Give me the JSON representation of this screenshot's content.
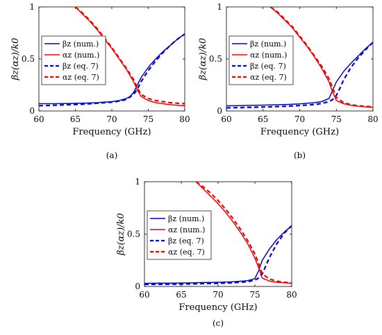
{
  "chart_data": [
    {
      "type": "line",
      "panel_label": "(a)",
      "xlabel": "Frequency (GHz)",
      "ylabel": "βz(αz)/k0",
      "xlim": [
        60,
        80
      ],
      "ylim": [
        0,
        1
      ],
      "x_ticks": [
        "60",
        "65",
        "70",
        "75",
        "80"
      ],
      "y_ticks": [
        "0",
        "0.5",
        "1"
      ],
      "grid": false,
      "legend_position": "top-left",
      "series": [
        {
          "name": "βz (num.)",
          "color": "#0000cc",
          "dash": "solid",
          "x": [
            60,
            62,
            64,
            66,
            68,
            70,
            71,
            72,
            72.5,
            73,
            73.5,
            74,
            75,
            76,
            77,
            78,
            79,
            80
          ],
          "y": [
            0.07,
            0.07,
            0.072,
            0.075,
            0.08,
            0.09,
            0.1,
            0.12,
            0.14,
            0.18,
            0.25,
            0.32,
            0.42,
            0.5,
            0.57,
            0.63,
            0.69,
            0.74
          ]
        },
        {
          "name": "αz (num.)",
          "color": "#ee0000",
          "dash": "solid",
          "x": [
            65,
            66,
            67,
            68,
            69,
            70,
            71,
            72,
            73,
            73.5,
            74,
            75,
            76,
            77,
            78,
            79,
            80
          ],
          "y": [
            1.0,
            0.93,
            0.86,
            0.78,
            0.69,
            0.6,
            0.5,
            0.4,
            0.28,
            0.2,
            0.14,
            0.1,
            0.08,
            0.07,
            0.06,
            0.055,
            0.05
          ]
        },
        {
          "name": "βz (eq. 7)",
          "color": "#0000cc",
          "dash": "dashed",
          "x": [
            60,
            62,
            64,
            66,
            68,
            70,
            71,
            72,
            73,
            73.5,
            74,
            75,
            76,
            77,
            78,
            79,
            80
          ],
          "y": [
            0.05,
            0.055,
            0.06,
            0.065,
            0.075,
            0.085,
            0.095,
            0.11,
            0.16,
            0.21,
            0.28,
            0.39,
            0.48,
            0.56,
            0.63,
            0.69,
            0.74
          ]
        },
        {
          "name": "αz (eq. 7)",
          "color": "#ee0000",
          "dash": "dashed",
          "x": [
            65,
            66,
            67,
            68,
            69,
            70,
            71,
            72,
            73,
            73.5,
            74,
            75,
            76,
            77,
            78,
            79,
            80
          ],
          "y": [
            1.0,
            0.94,
            0.87,
            0.79,
            0.7,
            0.61,
            0.51,
            0.41,
            0.3,
            0.22,
            0.16,
            0.12,
            0.1,
            0.09,
            0.08,
            0.075,
            0.07
          ]
        }
      ]
    },
    {
      "type": "line",
      "panel_label": "(b)",
      "xlabel": "Frequency (GHz)",
      "ylabel": "βz(αz)/k0",
      "xlim": [
        60,
        80
      ],
      "ylim": [
        0,
        1
      ],
      "x_ticks": [
        "60",
        "65",
        "70",
        "75",
        "80"
      ],
      "y_ticks": [
        "0",
        "0.5",
        "1"
      ],
      "grid": false,
      "legend_position": "top-left",
      "series": [
        {
          "name": "βz (num.)",
          "color": "#0000cc",
          "dash": "solid",
          "x": [
            60,
            62,
            64,
            66,
            68,
            70,
            72,
            73,
            74,
            74.5,
            75,
            76,
            77,
            78,
            79,
            80
          ],
          "y": [
            0.05,
            0.052,
            0.055,
            0.058,
            0.062,
            0.068,
            0.08,
            0.09,
            0.12,
            0.2,
            0.28,
            0.38,
            0.46,
            0.53,
            0.6,
            0.66
          ]
        },
        {
          "name": "αz (num.)",
          "color": "#ee0000",
          "dash": "solid",
          "x": [
            66,
            67,
            68,
            69,
            70,
            71,
            72,
            73,
            74,
            74.5,
            75,
            76,
            77,
            78,
            79,
            80
          ],
          "y": [
            1.0,
            0.94,
            0.87,
            0.8,
            0.71,
            0.62,
            0.52,
            0.41,
            0.28,
            0.18,
            0.1,
            0.07,
            0.055,
            0.045,
            0.04,
            0.035
          ]
        },
        {
          "name": "βz (eq. 7)",
          "color": "#0000cc",
          "dash": "dashed",
          "x": [
            60,
            62,
            64,
            66,
            68,
            70,
            72,
            73,
            74,
            74.5,
            75,
            75.5,
            76,
            77,
            78,
            79,
            80
          ],
          "y": [
            0.03,
            0.033,
            0.036,
            0.04,
            0.045,
            0.052,
            0.062,
            0.072,
            0.09,
            0.11,
            0.15,
            0.22,
            0.3,
            0.42,
            0.51,
            0.59,
            0.66
          ]
        },
        {
          "name": "αz (eq. 7)",
          "color": "#ee0000",
          "dash": "dashed",
          "x": [
            66,
            67,
            68,
            69,
            70,
            71,
            72,
            73,
            74,
            74.5,
            75,
            76,
            77,
            78,
            79,
            80
          ],
          "y": [
            1.0,
            0.95,
            0.88,
            0.81,
            0.72,
            0.63,
            0.53,
            0.43,
            0.31,
            0.22,
            0.13,
            0.08,
            0.06,
            0.05,
            0.045,
            0.04
          ]
        }
      ]
    },
    {
      "type": "line",
      "panel_label": "(c)",
      "xlabel": "Frequency (GHz)",
      "ylabel": "βz(αz)/k0",
      "xlim": [
        60,
        80
      ],
      "ylim": [
        0,
        1
      ],
      "x_ticks": [
        "60",
        "65",
        "70",
        "75",
        "80"
      ],
      "y_ticks": [
        "0",
        "0.5",
        "1"
      ],
      "grid": false,
      "legend_position": "top-left",
      "series": [
        {
          "name": "βz (num.)",
          "color": "#0000cc",
          "dash": "solid",
          "x": [
            60,
            62,
            64,
            66,
            68,
            70,
            72,
            74,
            75,
            75.5,
            76,
            77,
            78,
            79,
            80
          ],
          "y": [
            0.03,
            0.031,
            0.032,
            0.034,
            0.037,
            0.04,
            0.045,
            0.055,
            0.075,
            0.15,
            0.25,
            0.36,
            0.45,
            0.52,
            0.58
          ]
        },
        {
          "name": "αz (num.)",
          "color": "#ee0000",
          "dash": "solid",
          "x": [
            67,
            68,
            69,
            70,
            71,
            72,
            73,
            74,
            75,
            75.5,
            76,
            77,
            78,
            79,
            80
          ],
          "y": [
            1.0,
            0.93,
            0.86,
            0.79,
            0.71,
            0.62,
            0.52,
            0.41,
            0.27,
            0.18,
            0.08,
            0.05,
            0.04,
            0.035,
            0.03
          ]
        },
        {
          "name": "βz (eq. 7)",
          "color": "#0000cc",
          "dash": "dashed",
          "x": [
            60,
            62,
            64,
            66,
            68,
            70,
            72,
            74,
            75,
            75.5,
            76,
            76.5,
            77,
            78,
            79,
            80
          ],
          "y": [
            0.02,
            0.021,
            0.022,
            0.024,
            0.027,
            0.03,
            0.035,
            0.045,
            0.06,
            0.08,
            0.12,
            0.2,
            0.28,
            0.41,
            0.51,
            0.58
          ]
        },
        {
          "name": "αz (eq. 7)",
          "color": "#ee0000",
          "dash": "dashed",
          "x": [
            67,
            68,
            69,
            70,
            71,
            72,
            73,
            74,
            75,
            75.5,
            76,
            77,
            78,
            79,
            80
          ],
          "y": [
            1.0,
            0.95,
            0.89,
            0.82,
            0.74,
            0.65,
            0.55,
            0.44,
            0.31,
            0.22,
            0.12,
            0.07,
            0.05,
            0.04,
            0.035
          ]
        }
      ]
    }
  ]
}
